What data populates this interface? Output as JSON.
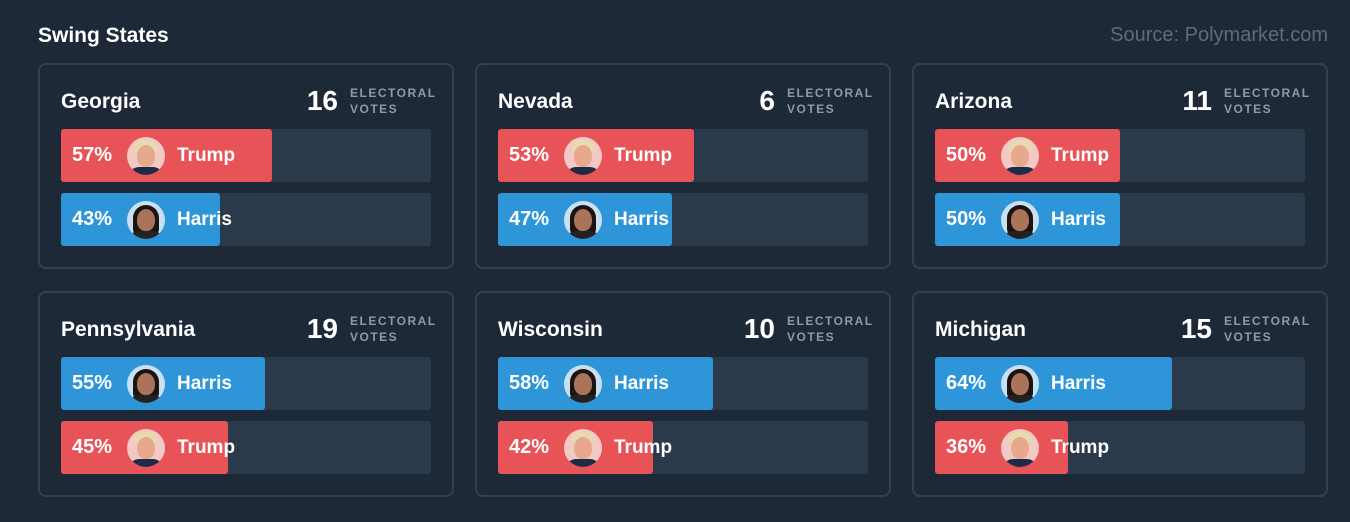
{
  "header": {
    "title": "Swing States",
    "source": "Source: Polymarket.com"
  },
  "ev_label_line1": "ELECTORAL",
  "ev_label_line2": "VOTES",
  "colors": {
    "trump": "#e85358",
    "harris": "#2e96d8",
    "track": "#2b3a4a"
  },
  "states": [
    {
      "name": "Georgia",
      "electoral_votes": "16",
      "candidates": [
        {
          "name": "Trump",
          "pct_label": "57%",
          "pct": 57,
          "party": "red",
          "avatar": "trump-portrait-icon"
        },
        {
          "name": "Harris",
          "pct_label": "43%",
          "pct": 43,
          "party": "blue",
          "avatar": "harris-portrait-icon"
        }
      ]
    },
    {
      "name": "Nevada",
      "electoral_votes": "6",
      "candidates": [
        {
          "name": "Trump",
          "pct_label": "53%",
          "pct": 53,
          "party": "red",
          "avatar": "trump-portrait-icon"
        },
        {
          "name": "Harris",
          "pct_label": "47%",
          "pct": 47,
          "party": "blue",
          "avatar": "harris-portrait-icon"
        }
      ]
    },
    {
      "name": "Arizona",
      "electoral_votes": "11",
      "candidates": [
        {
          "name": "Trump",
          "pct_label": "50%",
          "pct": 50,
          "party": "red",
          "avatar": "trump-portrait-icon"
        },
        {
          "name": "Harris",
          "pct_label": "50%",
          "pct": 50,
          "party": "blue",
          "avatar": "harris-portrait-icon"
        }
      ]
    },
    {
      "name": "Pennsylvania",
      "electoral_votes": "19",
      "candidates": [
        {
          "name": "Harris",
          "pct_label": "55%",
          "pct": 55,
          "party": "blue",
          "avatar": "harris-portrait-icon"
        },
        {
          "name": "Trump",
          "pct_label": "45%",
          "pct": 45,
          "party": "red",
          "avatar": "trump-portrait-icon"
        }
      ]
    },
    {
      "name": "Wisconsin",
      "electoral_votes": "10",
      "candidates": [
        {
          "name": "Harris",
          "pct_label": "58%",
          "pct": 58,
          "party": "blue",
          "avatar": "harris-portrait-icon"
        },
        {
          "name": "Trump",
          "pct_label": "42%",
          "pct": 42,
          "party": "red",
          "avatar": "trump-portrait-icon"
        }
      ]
    },
    {
      "name": "Michigan",
      "electoral_votes": "15",
      "candidates": [
        {
          "name": "Harris",
          "pct_label": "64%",
          "pct": 64,
          "party": "blue",
          "avatar": "harris-portrait-icon"
        },
        {
          "name": "Trump",
          "pct_label": "36%",
          "pct": 36,
          "party": "red",
          "avatar": "trump-portrait-icon"
        }
      ]
    }
  ]
}
